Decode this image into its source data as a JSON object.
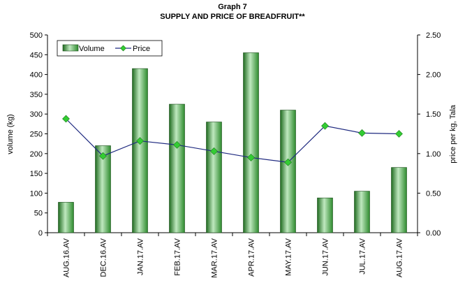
{
  "chart_data": {
    "type": "bar_line",
    "title": "Graph 7",
    "subtitle": "SUPPLY AND PRICE OF BREADFRUIT**",
    "y_label": "volume (kg)",
    "y2_label": "price per kg, Tala",
    "categories": [
      "AUG.16.AV",
      "DEC.16.AV",
      "JAN.17.AV",
      "FEB.17.AV",
      "MAR.17.AV",
      "APR.17.AV",
      "MAY.17.AV",
      "JUN.17.AV",
      "JUL.17.AV",
      "AUG.17.AV"
    ],
    "series": [
      {
        "name": "Volume",
        "type": "bar",
        "color": "#3a9a3a",
        "values": [
          77,
          220,
          415,
          325,
          280,
          455,
          310,
          88,
          105,
          165
        ]
      },
      {
        "name": "Price",
        "type": "line",
        "axis": "y2",
        "color": "#1f2a80",
        "marker_color": "#33cc33",
        "values": [
          1.44,
          0.97,
          1.16,
          1.11,
          1.03,
          0.95,
          0.89,
          1.35,
          1.26,
          1.25
        ]
      }
    ],
    "ylim": [
      0,
      500
    ],
    "yticks": [
      0,
      50,
      100,
      150,
      200,
      250,
      300,
      350,
      400,
      450,
      500
    ],
    "y2lim": [
      0,
      2.5
    ],
    "y2ticks": [
      {
        "value": 0,
        "label": "0.00"
      },
      {
        "value": 0.5,
        "label": "0.50"
      },
      {
        "value": 1,
        "label": "1.00"
      },
      {
        "value": 1.5,
        "label": "1.50"
      },
      {
        "value": 2,
        "label": "2.00"
      },
      {
        "value": 2.5,
        "label": "2.50"
      }
    ],
    "legend": "top-left"
  }
}
